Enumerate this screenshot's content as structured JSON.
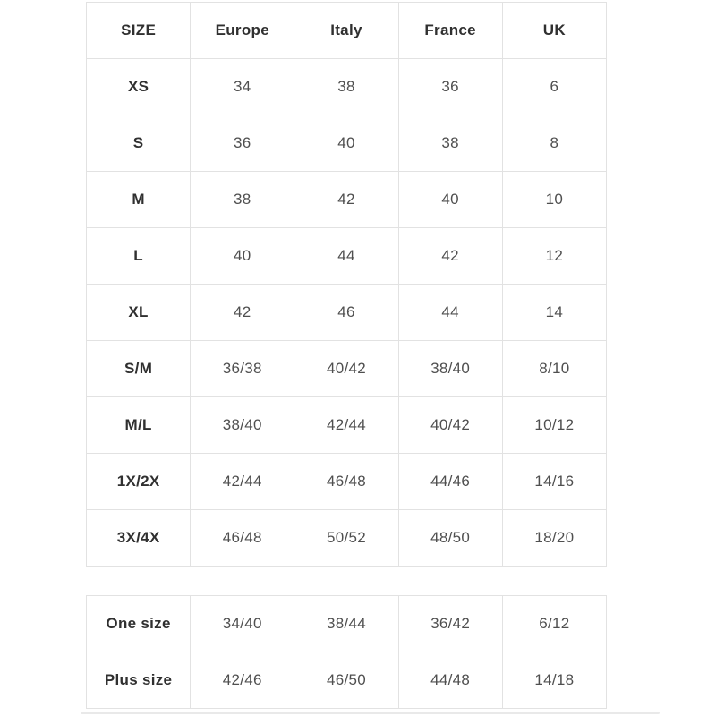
{
  "colors": {
    "background": "#ffffff",
    "border": "#e2e2e2",
    "header_text": "#303030",
    "cell_text": "#4f4f4f",
    "scrollbar_thumb": "#e9e9e9"
  },
  "main_table": {
    "headers": [
      "SIZE",
      "Europe",
      "Italy",
      "France",
      "UK"
    ],
    "rows": [
      {
        "label": "XS",
        "values": [
          "34",
          "38",
          "36",
          "6"
        ]
      },
      {
        "label": "S",
        "values": [
          "36",
          "40",
          "38",
          "8"
        ]
      },
      {
        "label": "M",
        "values": [
          "38",
          "42",
          "40",
          "10"
        ]
      },
      {
        "label": "L",
        "values": [
          "40",
          "44",
          "42",
          "12"
        ]
      },
      {
        "label": "XL",
        "values": [
          "42",
          "46",
          "44",
          "14"
        ]
      },
      {
        "label": "S/M",
        "values": [
          "36/38",
          "40/42",
          "38/40",
          "8/10"
        ]
      },
      {
        "label": "M/L",
        "values": [
          "38/40",
          "42/44",
          "40/42",
          "10/12"
        ]
      },
      {
        "label": "1X/2X",
        "values": [
          "42/44",
          "46/48",
          "44/46",
          "14/16"
        ]
      },
      {
        "label": "3X/4X",
        "values": [
          "46/48",
          "50/52",
          "48/50",
          "18/20"
        ]
      }
    ]
  },
  "secondary_table": {
    "rows": [
      {
        "label": "One size",
        "values": [
          "34/40",
          "38/44",
          "36/42",
          "6/12"
        ]
      },
      {
        "label": "Plus size",
        "values": [
          "42/46",
          "46/50",
          "44/48",
          "14/18"
        ]
      }
    ]
  }
}
